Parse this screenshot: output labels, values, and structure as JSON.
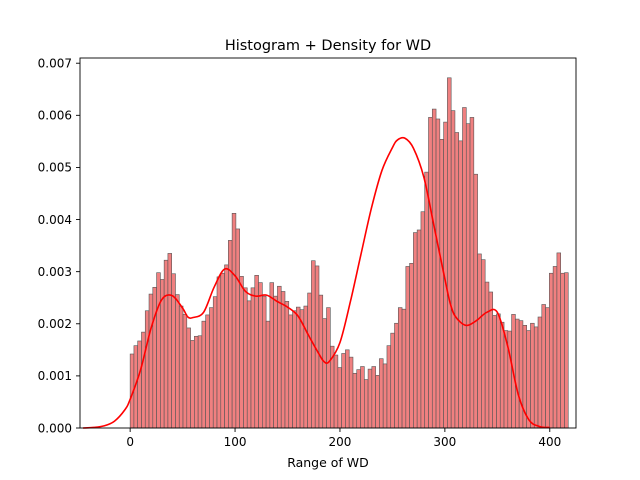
{
  "chart_data": {
    "type": "bar",
    "title": "Histogram + Density for WD",
    "xlabel": "Range of WD",
    "ylabel": "",
    "xlim": [
      -47.8,
      425
    ],
    "ylim": [
      0,
      0.0071
    ],
    "xticks": [
      0,
      100,
      200,
      300,
      400
    ],
    "xtick_labels": [
      "0",
      "100",
      "200",
      "300",
      "400"
    ],
    "yticks": [
      0,
      0.001,
      0.002,
      0.003,
      0.004,
      0.005,
      0.006,
      0.007
    ],
    "ytick_labels": [
      "0.000",
      "0.001",
      "0.002",
      "0.003",
      "0.004",
      "0.005",
      "0.006",
      "0.007"
    ],
    "grid": false,
    "histogram": {
      "bin_start": 0,
      "bin_width": 3.6,
      "values": [
        0.00142,
        0.00158,
        0.00167,
        0.00184,
        0.00225,
        0.00257,
        0.0027,
        0.00298,
        0.00285,
        0.00322,
        0.00335,
        0.00296,
        0.00256,
        0.00234,
        0.00218,
        0.00192,
        0.00168,
        0.00176,
        0.00177,
        0.00205,
        0.00217,
        0.00231,
        0.00252,
        0.0029,
        0.00297,
        0.00313,
        0.0036,
        0.00412,
        0.00382,
        0.00291,
        0.00269,
        0.00244,
        0.00269,
        0.00293,
        0.00279,
        0.00253,
        0.00205,
        0.00279,
        0.00253,
        0.00272,
        0.00262,
        0.00243,
        0.00217,
        0.00225,
        0.00232,
        0.00227,
        0.00234,
        0.00259,
        0.00321,
        0.00311,
        0.00255,
        0.0021,
        0.00231,
        0.00157,
        0.0014,
        0.00116,
        0.00143,
        0.0015,
        0.00136,
        0.00105,
        0.00112,
        0.00118,
        0.00093,
        0.00113,
        0.00118,
        0.00101,
        0.00133,
        0.00123,
        0.00158,
        0.00182,
        0.00201,
        0.00231,
        0.00228,
        0.0031,
        0.00316,
        0.00375,
        0.0038,
        0.00415,
        0.00491,
        0.00596,
        0.00612,
        0.00593,
        0.00554,
        0.00587,
        0.00672,
        0.00609,
        0.00567,
        0.00551,
        0.00615,
        0.00584,
        0.00596,
        0.00487,
        0.00334,
        0.00323,
        0.0028,
        0.00261,
        0.00216,
        0.00219,
        0.00203,
        0.00187,
        0.00186,
        0.00218,
        0.00209,
        0.00206,
        0.00197,
        0.00187,
        0.00201,
        0.00194,
        0.00213,
        0.00237,
        0.00231,
        0.00297,
        0.0031,
        0.00336,
        0.00297,
        0.00298
      ],
      "fill": "#f08080",
      "edge": "#555555"
    },
    "density": {
      "color": "#ff0000",
      "x": [
        -45,
        -35,
        -25,
        -15,
        -5,
        0,
        10,
        20,
        30,
        40,
        50,
        55,
        60,
        70,
        80,
        90,
        100,
        110,
        120,
        130,
        140,
        150,
        160,
        170,
        180,
        185,
        190,
        200,
        210,
        220,
        230,
        240,
        250,
        255,
        262,
        270,
        280,
        290,
        300,
        305,
        310,
        320,
        330,
        340,
        350,
        360,
        370,
        380,
        390,
        400
      ],
      "y": [
        0.0,
        1e-05,
        4e-05,
        0.00013,
        0.00035,
        0.00055,
        0.00112,
        0.00192,
        0.00246,
        0.00254,
        0.0023,
        0.00213,
        0.00212,
        0.00222,
        0.0027,
        0.00305,
        0.00292,
        0.00262,
        0.00253,
        0.00255,
        0.00243,
        0.00232,
        0.00215,
        0.00178,
        0.00142,
        0.00127,
        0.00128,
        0.00164,
        0.00243,
        0.00333,
        0.00422,
        0.00494,
        0.00538,
        0.00553,
        0.00556,
        0.00537,
        0.00481,
        0.00384,
        0.00286,
        0.0024,
        0.00214,
        0.00197,
        0.00206,
        0.00222,
        0.00222,
        0.00156,
        0.00064,
        0.00016,
        3e-05,
        1e-05
      ]
    }
  }
}
